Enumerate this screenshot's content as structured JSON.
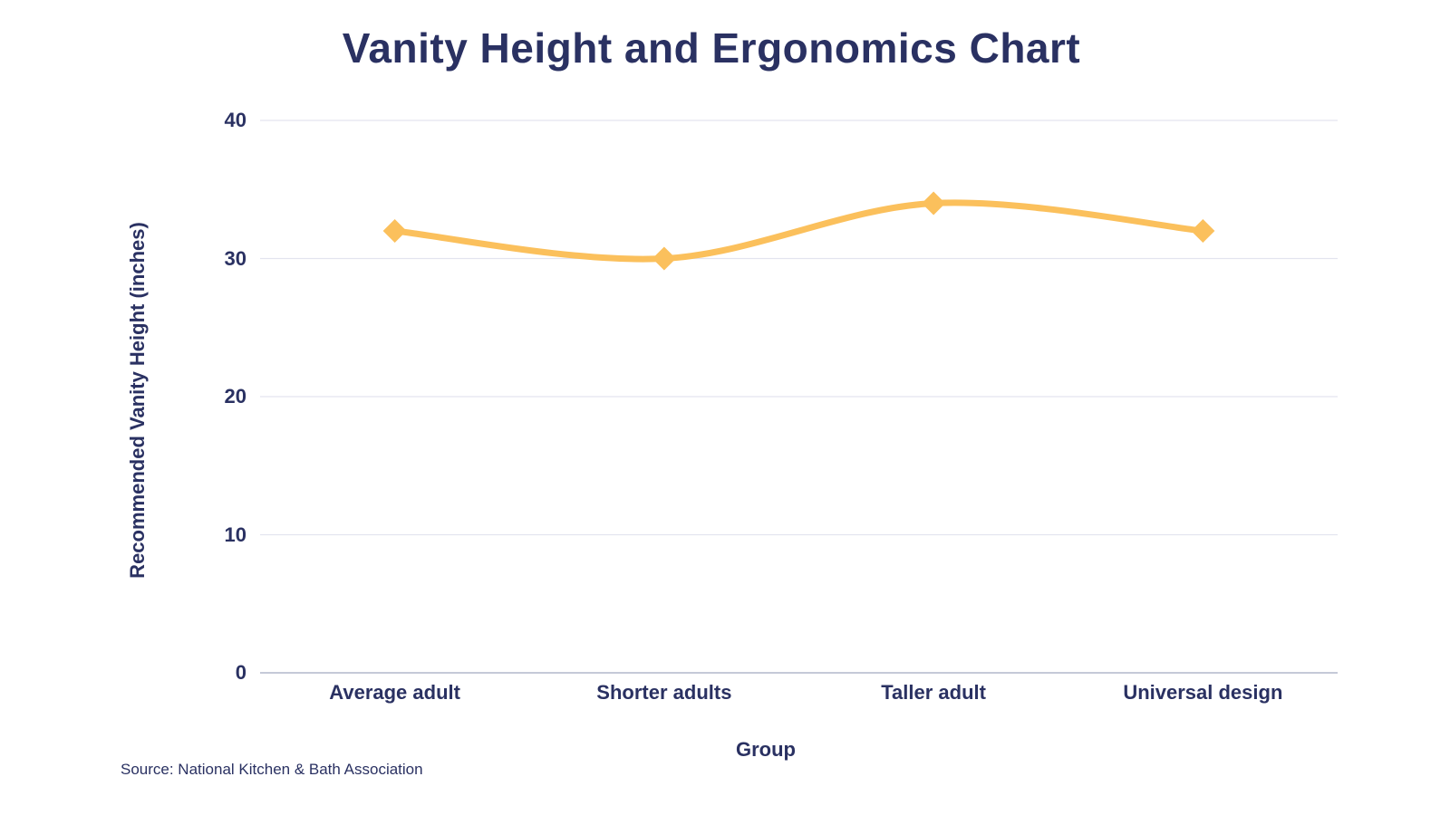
{
  "page": {
    "title": "Vanity Height and Ergonomics Chart",
    "source": "Source: National Kitchen & Bath Association"
  },
  "chart_data": {
    "type": "line",
    "title": "Vanity Height and Ergonomics Chart",
    "categories": [
      "Average adult",
      "Shorter adults",
      "Taller adult",
      "Universal design"
    ],
    "series": [
      {
        "name": "Recommended Vanity Height",
        "values": [
          32,
          30,
          34,
          32
        ]
      }
    ],
    "xlabel": "Group",
    "ylabel": "Recommended Vanity Height (inches)",
    "ylim": [
      0,
      40
    ],
    "yticks": [
      0,
      10,
      20,
      30,
      40
    ],
    "grid": true,
    "legend_position": "none",
    "line_style": "smooth",
    "marker": "diamond",
    "source": "Source: National Kitchen & Bath Association",
    "colors": {
      "line": "#FBC05C",
      "marker": "#FBC05C",
      "text": "#2A3162",
      "gridline": "#E3E4EF",
      "axis_line": "#C5C9D8",
      "background": "#FFFFFF"
    }
  }
}
